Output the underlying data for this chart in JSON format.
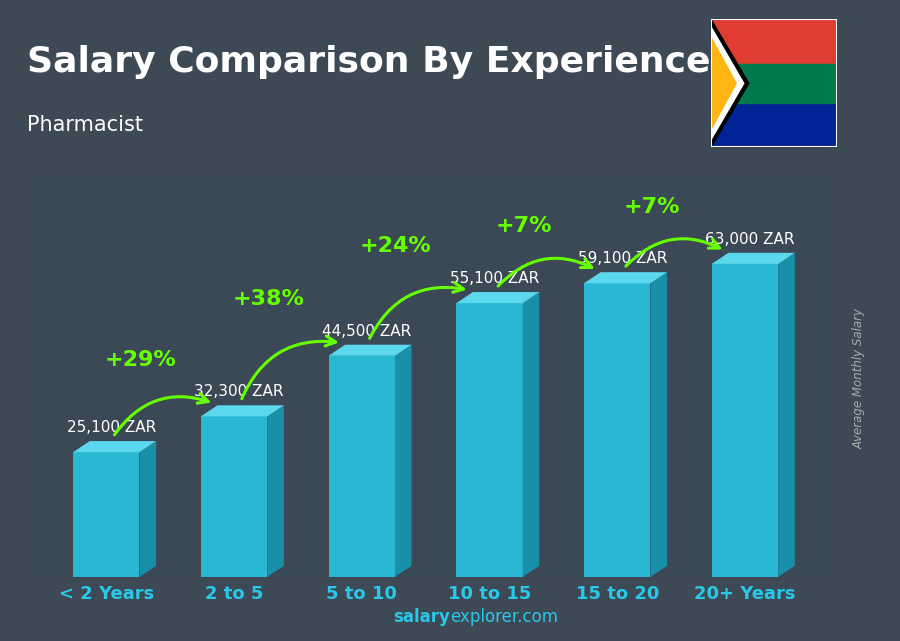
{
  "title": "Salary Comparison By Experience",
  "subtitle": "Pharmacist",
  "categories": [
    "< 2 Years",
    "2 to 5",
    "5 to 10",
    "10 to 15",
    "15 to 20",
    "20+ Years"
  ],
  "values": [
    25100,
    32300,
    44500,
    55100,
    59100,
    63000
  ],
  "labels": [
    "25,100 ZAR",
    "32,300 ZAR",
    "44,500 ZAR",
    "55,100 ZAR",
    "59,100 ZAR",
    "63,000 ZAR"
  ],
  "pct_changes": [
    "+29%",
    "+38%",
    "+24%",
    "+7%",
    "+7%"
  ],
  "bar_color_front": "#29b8d4",
  "bar_color_top": "#5cd8ee",
  "bar_color_side": "#1a8faa",
  "bg_color": "#2a3a4a",
  "text_color": "#ffffff",
  "green_color": "#66ff00",
  "ylabel": "Average Monthly Salary",
  "watermark_bold": "salary",
  "watermark_normal": "explorer.com",
  "watermark_color": "#29c8e8",
  "ylim": [
    0,
    80000
  ],
  "title_fontsize": 26,
  "subtitle_fontsize": 15,
  "label_fontsize": 11,
  "pct_fontsize": 16,
  "cat_fontsize": 13
}
